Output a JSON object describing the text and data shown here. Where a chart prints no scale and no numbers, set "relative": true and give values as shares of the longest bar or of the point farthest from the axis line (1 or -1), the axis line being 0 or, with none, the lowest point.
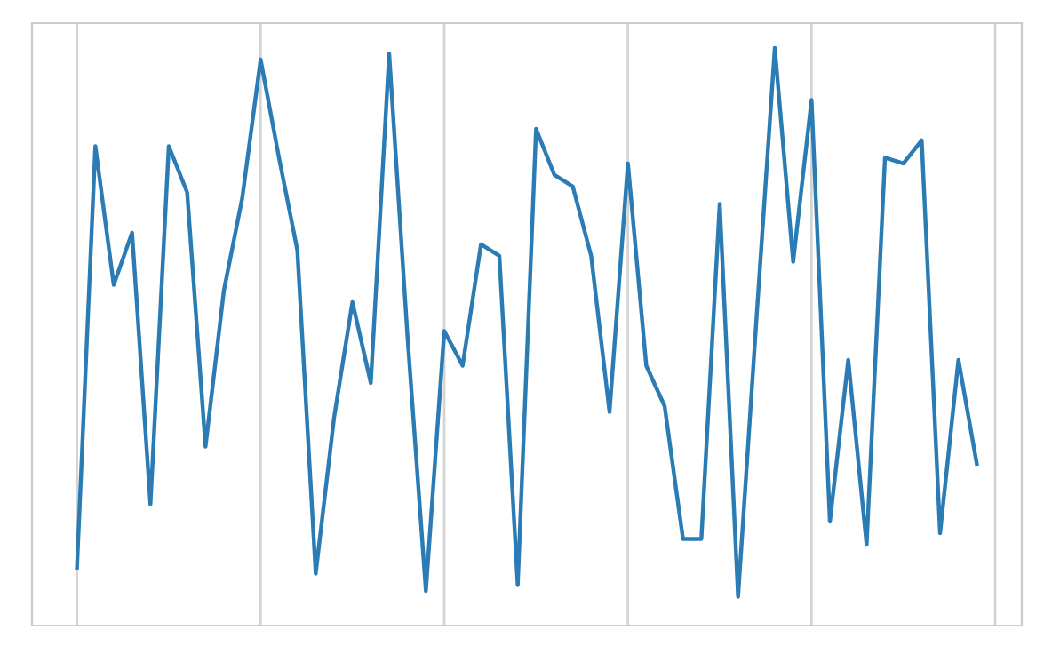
{
  "chart_data": {
    "type": "line",
    "relative": true,
    "grid": "x",
    "tick_labels": false,
    "categories": [
      null,
      null,
      null,
      null,
      null,
      null,
      null,
      null,
      null,
      null,
      null,
      null,
      null,
      null,
      null,
      null,
      null,
      null,
      null,
      null,
      null,
      null,
      null,
      null,
      null,
      null,
      null,
      null,
      null,
      null,
      null,
      null,
      null,
      null,
      null,
      null,
      null,
      null,
      null,
      null,
      null,
      null,
      null,
      null,
      null,
      null,
      null,
      null,
      null,
      null
    ],
    "series": [
      {
        "color": "#2b7bb4",
        "values": [
          0.1,
          0.83,
          0.59,
          0.68,
          0.21,
          0.83,
          0.75,
          0.31,
          0.58,
          0.74,
          0.98,
          0.81,
          0.65,
          0.09,
          0.36,
          0.56,
          0.42,
          0.99,
          0.5,
          0.06,
          0.51,
          0.45,
          0.66,
          0.64,
          0.07,
          0.86,
          0.78,
          0.76,
          0.64,
          0.37,
          0.8,
          0.45,
          0.38,
          0.15,
          0.15,
          0.73,
          0.05,
          0.53,
          1,
          0.63,
          0.91,
          0.18,
          0.46,
          0.14,
          0.81,
          0.8,
          0.84,
          0.16,
          0.46,
          0.28
        ]
      }
    ]
  }
}
